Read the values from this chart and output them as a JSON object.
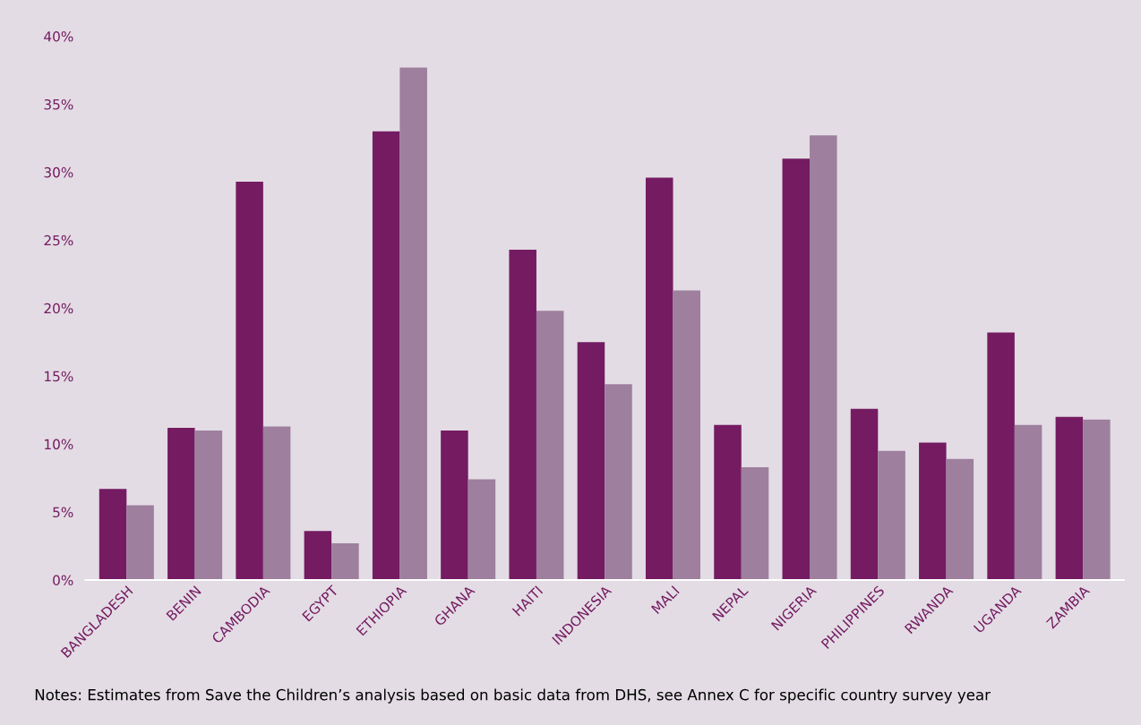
{
  "chart_data": {
    "type": "bar",
    "categories": [
      "BANGLADESH",
      "BENIN",
      "CAMBODIA",
      "EGYPT",
      "ETHIOPIA",
      "GHANA",
      "HAITI",
      "INDONESIA",
      "MALI",
      "NEPAL",
      "NIGERIA",
      "PHILIPPINES",
      "RWANDA",
      "UGANDA",
      "ZAMBIA"
    ],
    "series": [
      {
        "color": "#741b62",
        "values": [
          6.7,
          11.2,
          29.3,
          3.6,
          33.0,
          11.0,
          24.3,
          17.5,
          29.6,
          11.4,
          31.0,
          12.6,
          10.1,
          18.2,
          12.0
        ]
      },
      {
        "color": "#9e7f9e",
        "values": [
          5.5,
          11.0,
          11.3,
          2.7,
          37.7,
          7.4,
          19.8,
          14.4,
          21.3,
          8.3,
          32.7,
          9.5,
          8.9,
          11.4,
          11.8
        ]
      }
    ],
    "ylim": [
      0,
      40
    ],
    "yticks": [
      {
        "value": 0,
        "label": "0%"
      },
      {
        "value": 5,
        "label": "5%"
      },
      {
        "value": 10,
        "label": "10%"
      },
      {
        "value": 15,
        "label": "15%"
      },
      {
        "value": 20,
        "label": "20%"
      },
      {
        "value": 25,
        "label": "25%"
      },
      {
        "value": 30,
        "label": "30%"
      },
      {
        "value": 35,
        "label": "35%"
      },
      {
        "value": 40,
        "label": "40%"
      }
    ],
    "grid": false,
    "legend": false,
    "annotations": [
      "Notes: Estimates from Save the Children’s analysis based on basic data from DHS, see Annex C for specific country survey year"
    ]
  }
}
